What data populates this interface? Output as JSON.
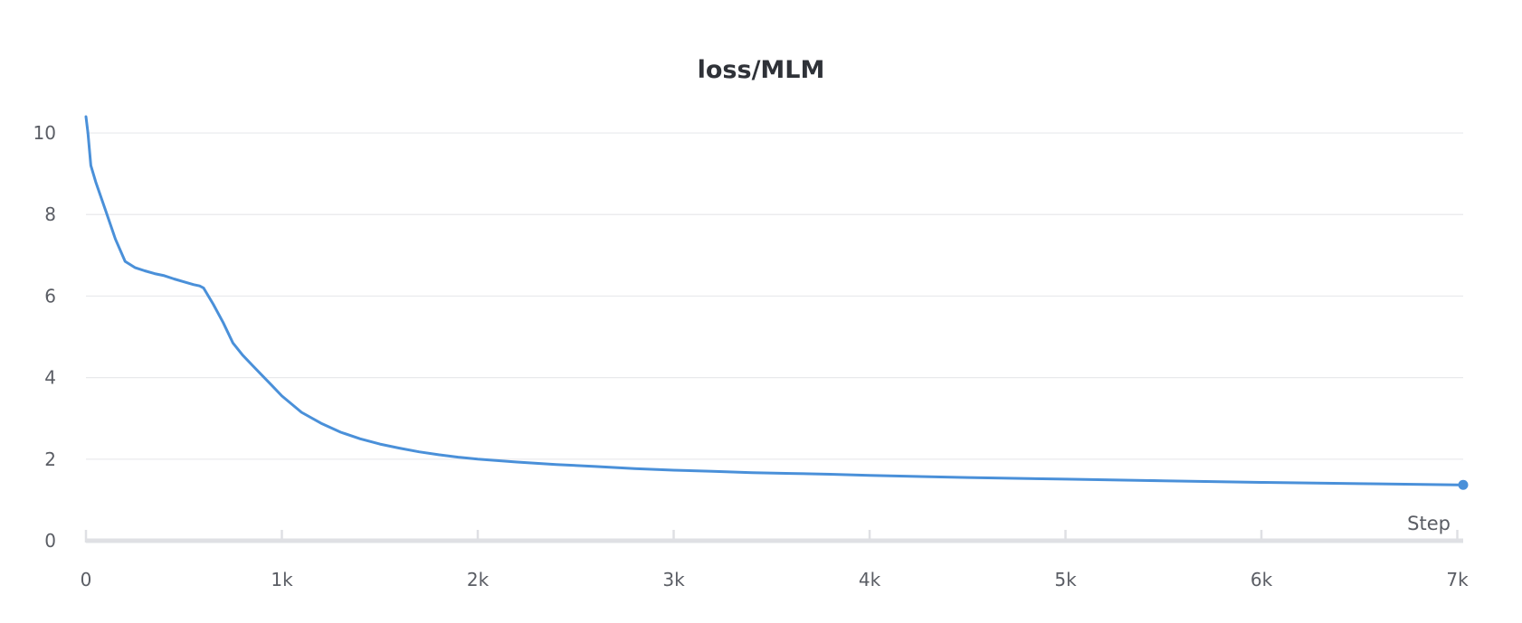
{
  "chart_data": {
    "type": "line",
    "title": "loss/MLM",
    "xlabel": "Step",
    "ylabel": "",
    "xlim": [
      0,
      7030
    ],
    "ylim": [
      0,
      10.6
    ],
    "grid": true,
    "x_ticks": [
      0,
      1000,
      2000,
      3000,
      4000,
      5000,
      6000,
      7000
    ],
    "x_tick_labels": [
      "0",
      "1k",
      "2k",
      "3k",
      "4k",
      "5k",
      "6k",
      "7k"
    ],
    "y_ticks": [
      0,
      2,
      4,
      6,
      8,
      10
    ],
    "y_tick_labels": [
      "0",
      "2",
      "4",
      "6",
      "8",
      "10"
    ],
    "series": [
      {
        "color": "#4a90d9",
        "end_marker": true,
        "x": [
          0,
          10,
          25,
          50,
          100,
          150,
          200,
          250,
          300,
          350,
          400,
          450,
          500,
          550,
          580,
          600,
          650,
          700,
          750,
          800,
          850,
          900,
          950,
          1000,
          1050,
          1100,
          1200,
          1300,
          1400,
          1500,
          1600,
          1700,
          1800,
          1900,
          2000,
          2200,
          2400,
          2600,
          2800,
          3000,
          3200,
          3400,
          3600,
          3800,
          4000,
          4500,
          5000,
          5500,
          6000,
          6500,
          7000,
          7030
        ],
        "y": [
          10.4,
          10.0,
          9.2,
          8.8,
          8.1,
          7.4,
          6.85,
          6.7,
          6.62,
          6.55,
          6.5,
          6.42,
          6.35,
          6.28,
          6.25,
          6.2,
          5.8,
          5.35,
          4.85,
          4.55,
          4.3,
          4.05,
          3.8,
          3.55,
          3.35,
          3.15,
          2.88,
          2.66,
          2.5,
          2.37,
          2.27,
          2.18,
          2.11,
          2.05,
          2.0,
          1.93,
          1.87,
          1.82,
          1.77,
          1.73,
          1.7,
          1.67,
          1.65,
          1.63,
          1.6,
          1.55,
          1.51,
          1.47,
          1.43,
          1.4,
          1.37,
          1.37
        ]
      }
    ]
  }
}
